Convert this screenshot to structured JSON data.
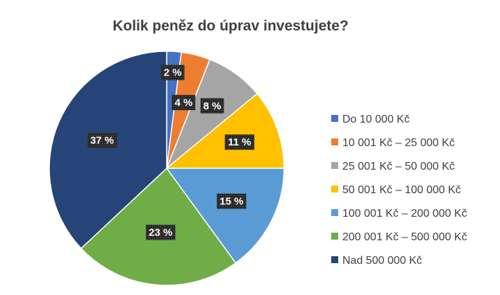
{
  "chart_data": {
    "type": "pie",
    "title": "Kolik peněz do úprav investujete?",
    "categories": [
      "Do 10 000 Kč",
      "10 001 Kč – 25 000 Kč",
      "25 001 Kč – 50 000 Kč",
      "50 001 Kč – 100 000 Kč",
      "100 001 Kč – 200 000 Kč",
      "200 001 Kč – 500 000 Kč",
      "Nad 500 000 Kč"
    ],
    "values": [
      2,
      4,
      8,
      11,
      15,
      23,
      37
    ],
    "data_labels": [
      "2 %",
      "4 %",
      "8 %",
      "11 %",
      "15 %",
      "23 %",
      "37 %"
    ],
    "colors": [
      "#4472c4",
      "#ed7d31",
      "#a5a5a5",
      "#ffc000",
      "#5b9bd5",
      "#70ad47",
      "#264478"
    ],
    "legend_position": "right"
  }
}
